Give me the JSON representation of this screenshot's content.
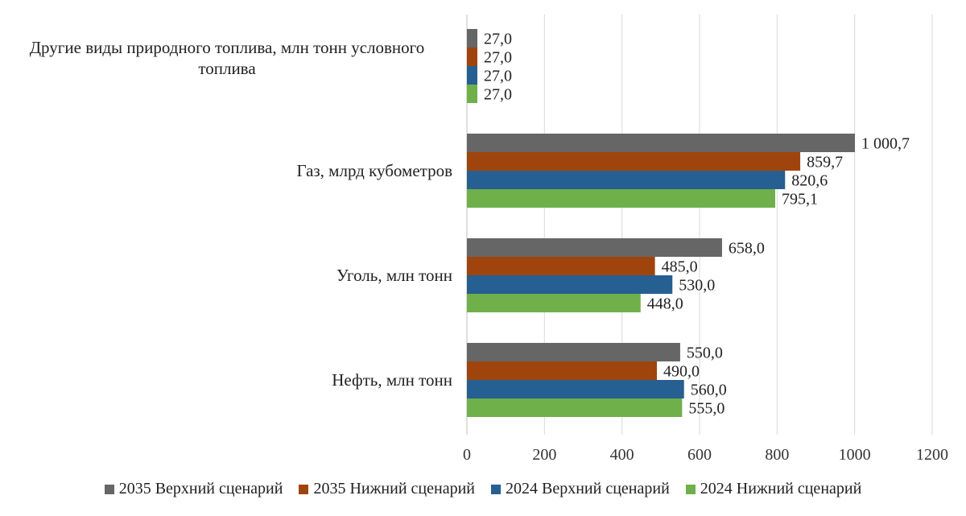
{
  "chart_data": {
    "type": "bar",
    "orientation": "horizontal",
    "categories": [
      "Другие виды природного топлива, млн тонн условного топлива",
      "Газ, млрд кубометров",
      "Уголь, млн тонн",
      "Нефть, млн тонн"
    ],
    "category_label_lines": [
      [
        "Другие виды природного топлива, млн тонн условного",
        "топлива"
      ],
      [
        "Газ, млрд кубометров"
      ],
      [
        "Уголь, млн тонн"
      ],
      [
        "Нефть, млн тонн"
      ]
    ],
    "series": [
      {
        "name": "2035 Верхний сценарий",
        "color": "#666666",
        "values": [
          27.0,
          1000.7,
          658.0,
          550.0
        ],
        "labels": [
          "27,0",
          "1 000,7",
          "658,0",
          "550,0"
        ]
      },
      {
        "name": "2035 Нижний сценарий",
        "color": "#a0440e",
        "values": [
          27.0,
          859.7,
          485.0,
          490.0
        ],
        "labels": [
          "27,0",
          "859,7",
          "485,0",
          "490,0"
        ]
      },
      {
        "name": "2024 Верхний сценарий",
        "color": "#265f91",
        "values": [
          27.0,
          820.6,
          530.0,
          560.0
        ],
        "labels": [
          "27,0",
          "820,6",
          "530,0",
          "560,0"
        ]
      },
      {
        "name": "2024 Нижний сценарий",
        "color": "#6fb04a",
        "values": [
          27.0,
          795.1,
          448.0,
          555.0
        ],
        "labels": [
          "27,0",
          "795,1",
          "448,0",
          "555,0"
        ]
      }
    ],
    "xlim": [
      0,
      1200
    ],
    "xticks": [
      0,
      200,
      400,
      600,
      800,
      1000,
      1200
    ],
    "xtick_labels": [
      "0",
      "200",
      "400",
      "600",
      "800",
      "1000",
      "1200"
    ],
    "grid": "vertical",
    "legend_position": "bottom"
  }
}
